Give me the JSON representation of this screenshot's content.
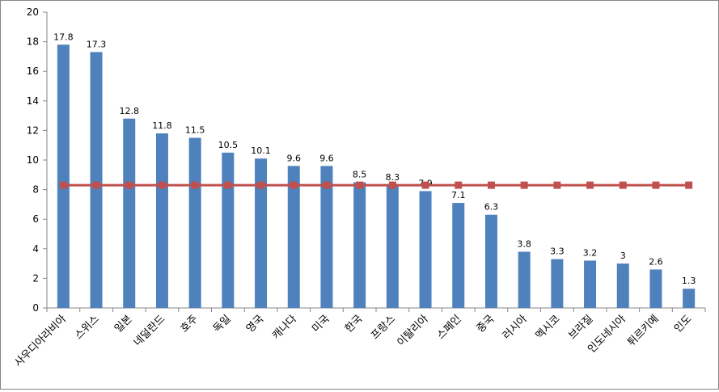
{
  "chart_data": {
    "type": "bar",
    "categories": [
      "사우디아라비아",
      "스위스",
      "일본",
      "네덜란드",
      "호주",
      "독일",
      "영국",
      "캐나다",
      "미국",
      "한국",
      "프랑스",
      "이탈리아",
      "스페인",
      "중국",
      "러시아",
      "멕시코",
      "브라질",
      "인도네시아",
      "튀르키예",
      "인도"
    ],
    "series": [
      {
        "type": "bar",
        "color": "#4f81bd",
        "values": [
          17.8,
          17.3,
          12.8,
          11.8,
          11.5,
          10.5,
          10.1,
          9.6,
          9.6,
          8.5,
          8.3,
          7.9,
          7.1,
          6.3,
          3.8,
          3.3,
          3.2,
          3,
          2.6,
          1.3
        ],
        "data_labels": [
          "17.8",
          "17.3",
          "12.8",
          "11.8",
          "11.5",
          "10.5",
          "10.1",
          "9.6",
          "9.6",
          "8.5",
          "8.3",
          "7.9",
          "7.1",
          "6.3",
          "3.8",
          "3.3",
          "3.2",
          "3",
          "2.6",
          "1.3"
        ]
      },
      {
        "type": "line",
        "color": "#c0504d",
        "marker": "square",
        "values": [
          8.3,
          8.3,
          8.3,
          8.3,
          8.3,
          8.3,
          8.3,
          8.3,
          8.3,
          8.3,
          8.3,
          8.3,
          8.3,
          8.3,
          8.3,
          8.3,
          8.3,
          8.3,
          8.3,
          8.3
        ]
      }
    ],
    "yticks": [
      "0",
      "2",
      "4",
      "6",
      "8",
      "10",
      "12",
      "14",
      "16",
      "18",
      "20"
    ],
    "ylim": [
      0,
      20
    ],
    "grid": false,
    "legend": "none",
    "title": "",
    "xlabel": "",
    "ylabel": ""
  }
}
